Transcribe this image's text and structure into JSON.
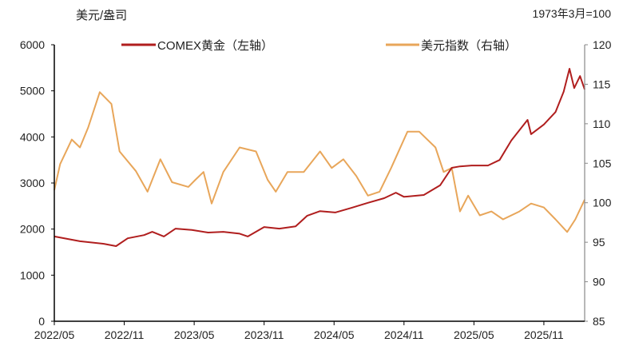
{
  "chart_data": {
    "type": "line",
    "left_unit_label": "美元/盎司",
    "right_unit_label": "1973年3月=100",
    "x_unit": "months since 2022/05",
    "x_ticks": [
      "2022/05",
      "2022/11",
      "2023/05",
      "2023/11",
      "2024/05",
      "2024/11",
      "2025/05",
      "2025/11"
    ],
    "x_tick_months": [
      0,
      6,
      12,
      18,
      24,
      30,
      36,
      42
    ],
    "x_range": [
      0,
      45.5
    ],
    "left_axis": {
      "ylim": [
        0,
        6000
      ],
      "ticks": [
        "0",
        "1000",
        "2000",
        "3000",
        "4000",
        "5000",
        "6000"
      ]
    },
    "right_axis": {
      "ylim": [
        85,
        120
      ],
      "ticks": [
        "85",
        "90",
        "95",
        "100",
        "105",
        "110",
        "115",
        "120"
      ]
    },
    "legend_position": "top",
    "series": [
      {
        "name": "COMEX黄金（左轴）",
        "axis": "left",
        "color": "#B01E1E",
        "x": [
          0,
          2.2,
          4.25,
          5.3,
          6.3,
          7.7,
          8.4,
          9.4,
          10.4,
          11.8,
          13.2,
          14.5,
          15.9,
          16.6,
          18.0,
          19.3,
          20.7,
          21.7,
          22.8,
          24.1,
          25.5,
          26.9,
          28.3,
          29.3,
          30.0,
          31.7,
          33.1,
          34.1,
          34.8,
          35.8,
          37.2,
          38.2,
          39.2,
          40.6,
          40.9,
          42.0,
          43.0,
          43.7,
          44.2,
          44.6,
          45.1,
          45.5
        ],
        "y": [
          1840,
          1735,
          1680,
          1630,
          1800,
          1870,
          1940,
          1840,
          2010,
          1980,
          1925,
          1940,
          1900,
          1840,
          2045,
          2010,
          2060,
          2290,
          2390,
          2360,
          2460,
          2570,
          2670,
          2790,
          2700,
          2740,
          2950,
          3330,
          3360,
          3380,
          3380,
          3500,
          3920,
          4370,
          4060,
          4270,
          4540,
          4980,
          5480,
          5060,
          5320,
          5030
        ]
      },
      {
        "name": "美元指数（右轴）",
        "axis": "right",
        "color": "#E8A65A",
        "x": [
          0,
          0.5,
          1.5,
          2.2,
          2.9,
          3.9,
          4.9,
          5.6,
          7.0,
          8.0,
          9.1,
          10.1,
          11.5,
          12.1,
          12.8,
          13.5,
          14.5,
          15.9,
          17.3,
          18.3,
          19.0,
          20.0,
          21.4,
          22.8,
          23.8,
          24.8,
          25.9,
          26.9,
          27.9,
          28.9,
          30.3,
          31.3,
          32.7,
          33.4,
          34.1,
          34.8,
          35.5,
          36.5,
          37.5,
          38.5,
          39.9,
          40.9,
          42.0,
          43.0,
          44.0,
          44.7,
          45.5
        ],
        "y": [
          101.6,
          104.9,
          108,
          107,
          109.5,
          114,
          112.5,
          106.5,
          104,
          101.4,
          105.5,
          102.6,
          102,
          102.9,
          103.9,
          99.9,
          103.9,
          107,
          106.5,
          102.9,
          101.4,
          103.9,
          103.9,
          106.5,
          104.4,
          105.5,
          103.4,
          100.9,
          101.4,
          104.4,
          109,
          109,
          107,
          103.9,
          104.4,
          98.9,
          100.9,
          98.4,
          98.9,
          97.9,
          98.9,
          99.9,
          99.4,
          97.9,
          96.3,
          97.9,
          100.4
        ]
      }
    ]
  }
}
